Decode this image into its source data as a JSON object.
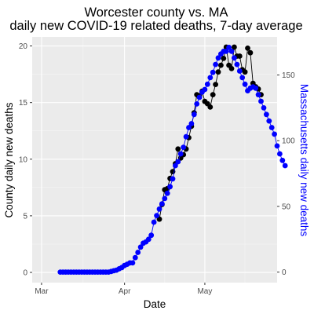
{
  "chart_data": {
    "type": "line",
    "title_lines": [
      "Worcester county vs. MA",
      "daily new COVID-19 related deaths, 7-day average"
    ],
    "xlabel": "Date",
    "ylabel": "County daily new deaths",
    "ylabel_right": "Massachusetts daily new deaths",
    "x_ticks": [
      {
        "label": "Mar",
        "day": 0
      },
      {
        "label": "Apr",
        "day": 31
      },
      {
        "label": "May",
        "day": 61
      }
    ],
    "xlim_days": [
      -3.5,
      88
    ],
    "ylim_left": [
      -0.9,
      20.8
    ],
    "y_ticks_left": [
      0,
      5,
      10,
      15,
      20
    ],
    "ylim_right": [
      -8,
      179
    ],
    "y_ticks_right": [
      0,
      50,
      100,
      150
    ],
    "grid": true,
    "series": [
      {
        "axis": "left",
        "color": "#000000",
        "x_day_start": 44,
        "values": [
          4.7,
          6.0,
          7.3,
          7.4,
          8.3,
          8.9,
          9.6,
          10.9,
          10.1,
          10.4,
          10.9,
          11.9,
          12.9,
          14.1,
          15.7,
          15.6,
          16.0,
          15.1,
          14.9,
          14.6,
          15.7,
          16.6,
          17.7,
          18.3,
          18.9,
          19.9,
          18.3,
          18.0,
          19.9,
          19.1,
          19.1,
          17.9,
          17.7,
          19.8,
          19.4,
          16.7,
          16.4,
          16.2,
          15.7
        ]
      },
      {
        "axis": "right",
        "color": "#0000ff",
        "x_day_start": 7,
        "values": [
          0,
          0,
          0,
          0,
          0,
          0,
          0,
          0,
          0,
          0,
          0,
          0,
          0,
          0,
          0,
          0,
          0,
          0,
          0,
          0.5,
          1,
          1.5,
          2.5,
          3.5,
          5,
          6,
          7,
          7,
          11,
          15,
          19,
          22,
          23,
          25,
          28,
          38,
          43,
          48,
          52,
          56,
          60,
          65,
          71,
          81,
          84,
          90,
          95,
          103,
          110,
          113,
          120,
          128,
          133,
          137,
          139,
          143,
          148,
          152,
          158,
          163,
          166,
          168,
          168,
          171,
          168,
          163,
          158,
          153,
          148,
          143,
          138,
          140,
          141,
          140,
          135,
          130,
          125,
          120,
          115,
          110,
          105,
          96,
          90,
          85,
          81
        ]
      }
    ]
  }
}
